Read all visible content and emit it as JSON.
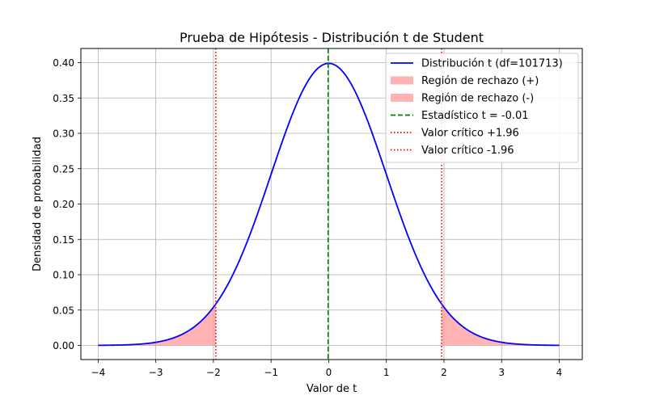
{
  "chart_data": {
    "type": "line",
    "title": "Prueba de Hipótesis - Distribución t de Student",
    "xlabel": "Valor de t",
    "ylabel": "Densidad de probabilidad",
    "xlim": [
      -4.3,
      4.4
    ],
    "ylim": [
      -0.02,
      0.42
    ],
    "grid": true,
    "legend_position": "top-right",
    "x_ticks": [
      -4,
      -3,
      -2,
      -1,
      0,
      1,
      2,
      3,
      4
    ],
    "x_tick_labels": [
      "−4",
      "−3",
      "−2",
      "−1",
      "0",
      "1",
      "2",
      "3",
      "4"
    ],
    "y_ticks": [
      0.0,
      0.05,
      0.1,
      0.15,
      0.2,
      0.25,
      0.3,
      0.35,
      0.4
    ],
    "y_tick_labels": [
      "0.00",
      "0.05",
      "0.10",
      "0.15",
      "0.20",
      "0.25",
      "0.30",
      "0.35",
      "0.40"
    ],
    "series": [
      {
        "name": "Distribución t (df=101713)",
        "kind": "line",
        "color": "#0000ff",
        "df": 101713,
        "x_range": [
          -4,
          4
        ]
      },
      {
        "name": "Región de rechazo (+)",
        "kind": "fill",
        "color": "#ff9999",
        "x_range": [
          1.96,
          4
        ]
      },
      {
        "name": "Región de rechazo (-)",
        "kind": "fill",
        "color": "#ff9999",
        "x_range": [
          -4,
          -1.96
        ]
      },
      {
        "name": "Estadístico t = -0.01",
        "kind": "vline",
        "color": "#008000",
        "style": "dashed",
        "x": -0.01
      },
      {
        "name": "Valor crítico +1.96",
        "kind": "vline",
        "color": "#ff0000",
        "style": "dotted",
        "x": 1.96
      },
      {
        "name": "Valor crítico -1.96",
        "kind": "vline",
        "color": "#ff0000",
        "style": "dotted",
        "x": -1.96
      }
    ]
  }
}
